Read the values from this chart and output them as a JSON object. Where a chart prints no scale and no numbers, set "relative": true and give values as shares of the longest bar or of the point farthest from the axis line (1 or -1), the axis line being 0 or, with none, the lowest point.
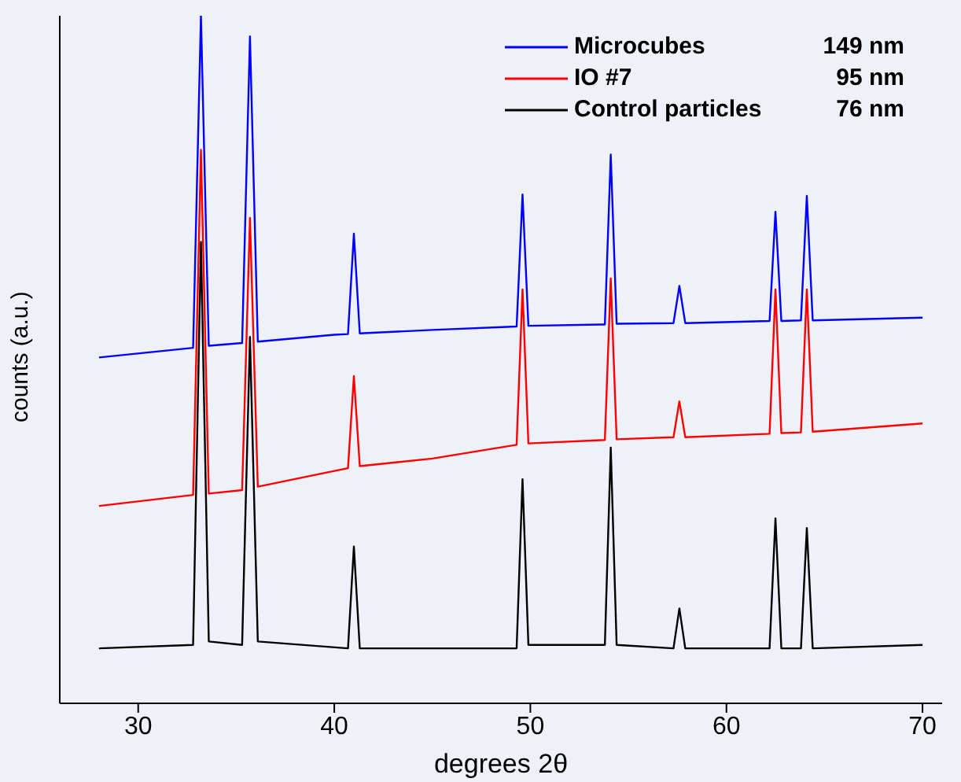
{
  "chart_data": {
    "type": "line",
    "relative": true,
    "xlabel": "degrees 2θ",
    "ylabel": "counts (a.u.)",
    "xlim": [
      26,
      71
    ],
    "xticks": [
      30,
      40,
      50,
      60,
      70
    ],
    "legend": "top right",
    "marker": "none",
    "grid": false,
    "annotations": [
      "149 nm",
      "95 nm",
      "76 nm"
    ],
    "series": [
      {
        "name": "Microcubes",
        "color": "#0000ff",
        "x": [
          28,
          32.8,
          33.2,
          33.6,
          35.3,
          35.7,
          36.1,
          40,
          40.7,
          41,
          41.3,
          45,
          49.3,
          49.6,
          49.9,
          53.8,
          54.1,
          54.4,
          57.3,
          57.6,
          57.9,
          62.2,
          62.5,
          62.8,
          63.8,
          64.1,
          64.4,
          70
        ],
        "values": [
          0.503,
          0.517,
          1,
          0.52,
          0.524,
          0.97,
          0.526,
          0.536,
          0.537,
          0.683,
          0.538,
          0.543,
          0.548,
          0.74,
          0.549,
          0.551,
          0.798,
          0.552,
          0.553,
          0.607,
          0.553,
          0.556,
          0.715,
          0.556,
          0.557,
          0.738,
          0.557,
          0.561
        ]
      },
      {
        "name": "IO #7",
        "color": "#ff0000",
        "x": [
          28,
          32.8,
          33.2,
          33.6,
          35.3,
          35.7,
          36.1,
          40,
          40.7,
          41,
          41.3,
          45,
          49.3,
          49.6,
          49.9,
          53.8,
          54.1,
          54.4,
          57.3,
          57.6,
          57.9,
          62.2,
          62.5,
          62.8,
          63.8,
          64.1,
          64.4,
          70
        ],
        "values": [
          0.287,
          0.303,
          0.805,
          0.305,
          0.31,
          0.706,
          0.315,
          0.338,
          0.342,
          0.476,
          0.345,
          0.356,
          0.376,
          0.602,
          0.378,
          0.383,
          0.618,
          0.384,
          0.387,
          0.439,
          0.387,
          0.392,
          0.602,
          0.393,
          0.394,
          0.602,
          0.395,
          0.407
        ]
      },
      {
        "name": "Control particles",
        "color": "#000000",
        "x": [
          28,
          32.8,
          33.2,
          33.6,
          35.3,
          35.7,
          36.1,
          40.7,
          41,
          41.3,
          49.3,
          49.6,
          49.9,
          53.8,
          54.1,
          54.4,
          57.3,
          57.6,
          57.9,
          62.2,
          62.5,
          62.8,
          63.8,
          64.1,
          64.4,
          70
        ],
        "values": [
          0.08,
          0.085,
          0.671,
          0.09,
          0.085,
          0.533,
          0.09,
          0.08,
          0.228,
          0.08,
          0.08,
          0.326,
          0.085,
          0.085,
          0.372,
          0.085,
          0.08,
          0.138,
          0.08,
          0.08,
          0.269,
          0.08,
          0.08,
          0.255,
          0.08,
          0.085
        ]
      }
    ]
  }
}
